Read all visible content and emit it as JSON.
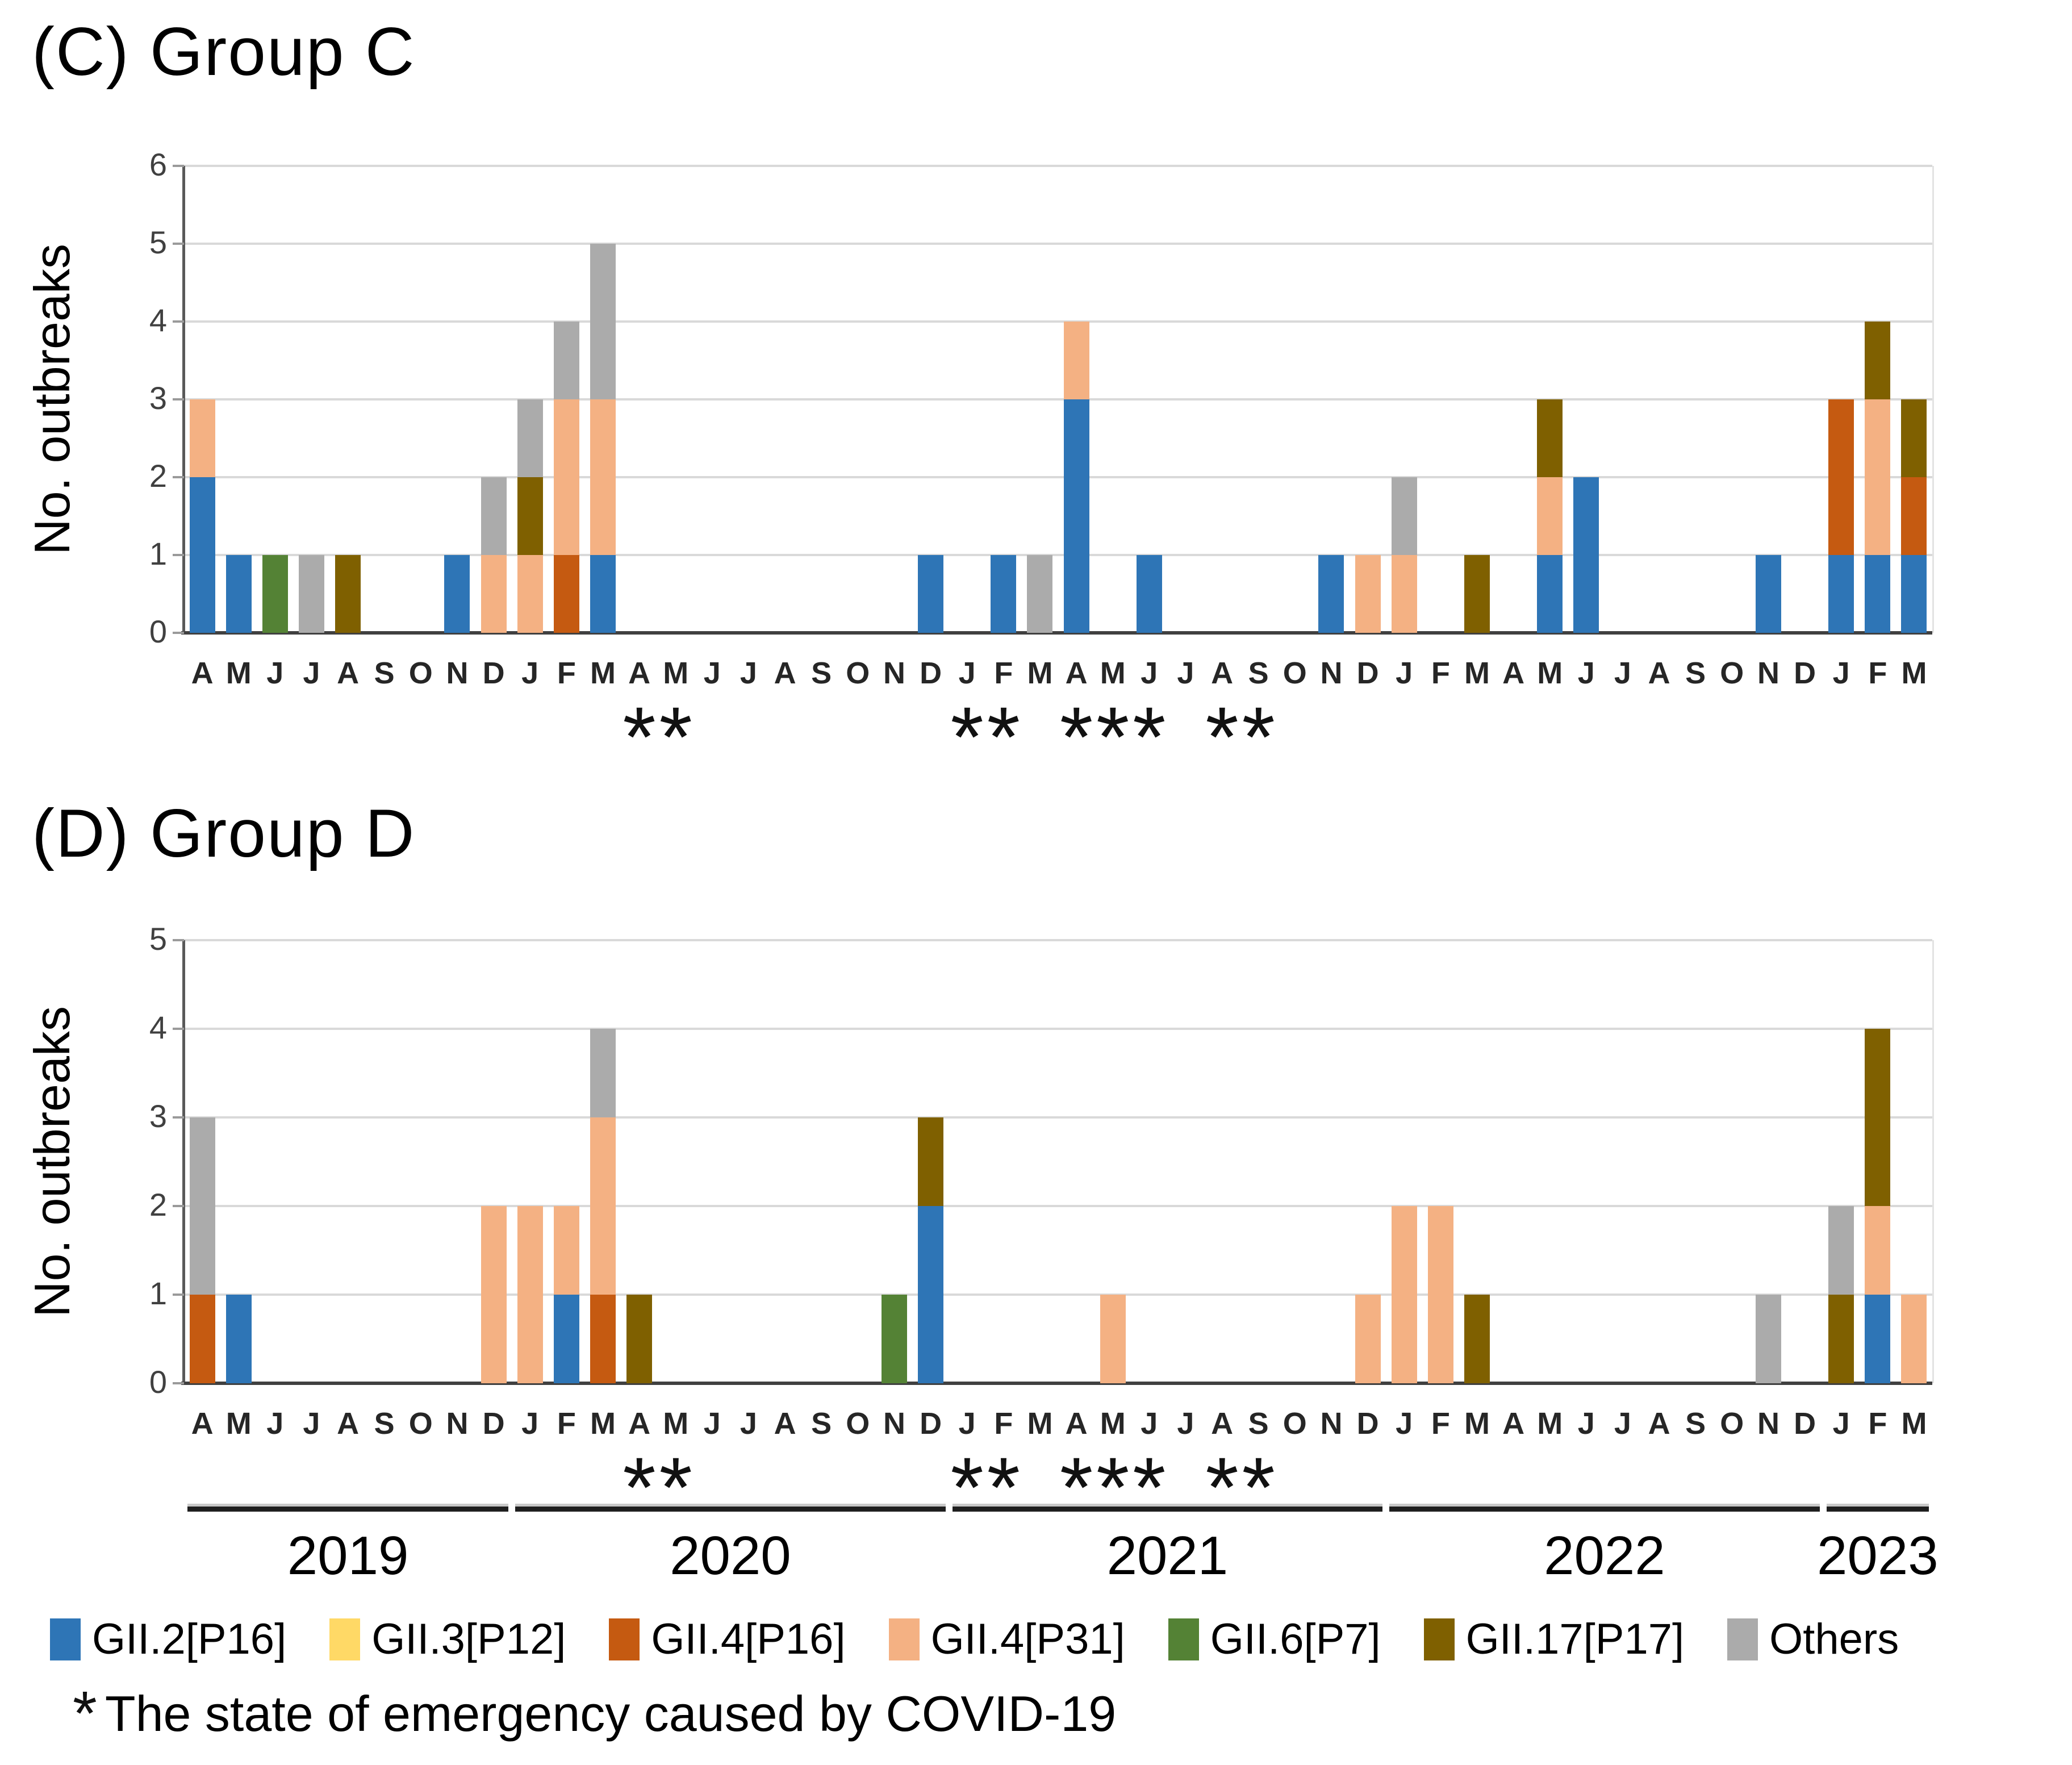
{
  "chart_data": {
    "type": "bar",
    "stacked": true,
    "grid": true,
    "legend_position": "bottom",
    "categories_months": [
      "A",
      "M",
      "J",
      "J",
      "A",
      "S",
      "O",
      "N",
      "D",
      "J",
      "F",
      "M",
      "A",
      "M",
      "J",
      "J",
      "A",
      "S",
      "O",
      "N",
      "D",
      "J",
      "F",
      "M",
      "A",
      "M",
      "J",
      "J",
      "A",
      "S",
      "O",
      "N",
      "D",
      "J",
      "F",
      "M",
      "A",
      "M",
      "J",
      "J",
      "A",
      "S",
      "O",
      "N",
      "D",
      "J",
      "F",
      "M"
    ],
    "years": [
      {
        "label": "2019",
        "start": 0,
        "span": 9
      },
      {
        "label": "2020",
        "start": 9,
        "span": 12
      },
      {
        "label": "2021",
        "start": 21,
        "span": 12
      },
      {
        "label": "2022",
        "start": 33,
        "span": 12
      },
      {
        "label": "2023",
        "start": 45,
        "span": 3
      }
    ],
    "series": [
      {
        "label": "GII.2[P16]",
        "color": "#2E75B6"
      },
      {
        "label": "GII.3[P12]",
        "color": "#FFD966"
      },
      {
        "label": "GII.4[P16]",
        "color": "#C55A11"
      },
      {
        "label": "GII.4[P31]",
        "color": "#F4B183"
      },
      {
        "label": "GII.6[P7]",
        "color": "#548235"
      },
      {
        "label": "GII.17[P17]",
        "color": "#7F6000"
      },
      {
        "label": "Others",
        "color": "#ABABAB"
      }
    ],
    "asterisk_symbol": "*",
    "asterisk_month_indices": [
      12,
      13,
      21,
      22,
      24,
      25,
      26,
      28,
      29
    ],
    "charts": [
      {
        "title": "(C) Group C",
        "ylabel": "No. outbreaks",
        "ylim": [
          0,
          6
        ],
        "yticks": [
          0,
          1,
          2,
          3,
          4,
          5,
          6
        ],
        "stacks": [
          [
            2,
            0,
            0,
            1,
            0,
            0,
            0
          ],
          [
            1,
            0,
            0,
            0,
            0,
            0,
            0
          ],
          [
            0,
            0,
            0,
            0,
            1,
            0,
            0
          ],
          [
            0,
            0,
            0,
            0,
            0,
            0,
            1
          ],
          [
            0,
            0,
            0,
            0,
            0,
            1,
            0
          ],
          [
            0,
            0,
            0,
            0,
            0,
            0,
            0
          ],
          [
            0,
            0,
            0,
            0,
            0,
            0,
            0
          ],
          [
            1,
            0,
            0,
            0,
            0,
            0,
            0
          ],
          [
            0,
            0,
            0,
            1,
            0,
            0,
            1
          ],
          [
            0,
            0,
            0,
            1,
            0,
            1,
            1
          ],
          [
            0,
            0,
            1,
            2,
            0,
            0,
            1
          ],
          [
            1,
            0,
            0,
            2,
            0,
            0,
            2
          ],
          [
            0,
            0,
            0,
            0,
            0,
            0,
            0
          ],
          [
            0,
            0,
            0,
            0,
            0,
            0,
            0
          ],
          [
            0,
            0,
            0,
            0,
            0,
            0,
            0
          ],
          [
            0,
            0,
            0,
            0,
            0,
            0,
            0
          ],
          [
            0,
            0,
            0,
            0,
            0,
            0,
            0
          ],
          [
            0,
            0,
            0,
            0,
            0,
            0,
            0
          ],
          [
            0,
            0,
            0,
            0,
            0,
            0,
            0
          ],
          [
            0,
            0,
            0,
            0,
            0,
            0,
            0
          ],
          [
            1,
            0,
            0,
            0,
            0,
            0,
            0
          ],
          [
            0,
            0,
            0,
            0,
            0,
            0,
            0
          ],
          [
            1,
            0,
            0,
            0,
            0,
            0,
            0
          ],
          [
            0,
            0,
            0,
            0,
            0,
            0,
            1
          ],
          [
            3,
            0,
            0,
            1,
            0,
            0,
            0
          ],
          [
            0,
            0,
            0,
            0,
            0,
            0,
            0
          ],
          [
            1,
            0,
            0,
            0,
            0,
            0,
            0
          ],
          [
            0,
            0,
            0,
            0,
            0,
            0,
            0
          ],
          [
            0,
            0,
            0,
            0,
            0,
            0,
            0
          ],
          [
            0,
            0,
            0,
            0,
            0,
            0,
            0
          ],
          [
            0,
            0,
            0,
            0,
            0,
            0,
            0
          ],
          [
            1,
            0,
            0,
            0,
            0,
            0,
            0
          ],
          [
            0,
            0,
            0,
            1,
            0,
            0,
            0
          ],
          [
            0,
            0,
            0,
            1,
            0,
            0,
            1
          ],
          [
            0,
            0,
            0,
            0,
            0,
            0,
            0
          ],
          [
            0,
            0,
            0,
            0,
            0,
            1,
            0
          ],
          [
            0,
            0,
            0,
            0,
            0,
            0,
            0
          ],
          [
            1,
            0,
            0,
            1,
            0,
            1,
            0
          ],
          [
            2,
            0,
            0,
            0,
            0,
            0,
            0
          ],
          [
            0,
            0,
            0,
            0,
            0,
            0,
            0
          ],
          [
            0,
            0,
            0,
            0,
            0,
            0,
            0
          ],
          [
            0,
            0,
            0,
            0,
            0,
            0,
            0
          ],
          [
            0,
            0,
            0,
            0,
            0,
            0,
            0
          ],
          [
            1,
            0,
            0,
            0,
            0,
            0,
            0
          ],
          [
            0,
            0,
            0,
            0,
            0,
            0,
            0
          ],
          [
            1,
            0,
            2,
            0,
            0,
            0,
            0
          ],
          [
            1,
            0,
            0,
            2,
            0,
            1,
            0
          ],
          [
            1,
            0,
            1,
            0,
            0,
            1,
            0
          ]
        ]
      },
      {
        "title": "(D) Group D",
        "ylabel": "No. outbreaks",
        "ylim": [
          0,
          5
        ],
        "yticks": [
          0,
          1,
          2,
          3,
          4,
          5
        ],
        "stacks": [
          [
            0,
            0,
            1,
            0,
            0,
            0,
            2
          ],
          [
            1,
            0,
            0,
            0,
            0,
            0,
            0
          ],
          [
            0,
            0,
            0,
            0,
            0,
            0,
            0
          ],
          [
            0,
            0,
            0,
            0,
            0,
            0,
            0
          ],
          [
            0,
            0,
            0,
            0,
            0,
            0,
            0
          ],
          [
            0,
            0,
            0,
            0,
            0,
            0,
            0
          ],
          [
            0,
            0,
            0,
            0,
            0,
            0,
            0
          ],
          [
            0,
            0,
            0,
            0,
            0,
            0,
            0
          ],
          [
            0,
            0,
            0,
            2,
            0,
            0,
            0
          ],
          [
            0,
            0,
            0,
            2,
            0,
            0,
            0
          ],
          [
            1,
            0,
            0,
            1,
            0,
            0,
            0
          ],
          [
            0,
            0,
            1,
            2,
            0,
            0,
            1
          ],
          [
            0,
            0,
            0,
            0,
            0,
            1,
            0
          ],
          [
            0,
            0,
            0,
            0,
            0,
            0,
            0
          ],
          [
            0,
            0,
            0,
            0,
            0,
            0,
            0
          ],
          [
            0,
            0,
            0,
            0,
            0,
            0,
            0
          ],
          [
            0,
            0,
            0,
            0,
            0,
            0,
            0
          ],
          [
            0,
            0,
            0,
            0,
            0,
            0,
            0
          ],
          [
            0,
            0,
            0,
            0,
            0,
            0,
            0
          ],
          [
            0,
            0,
            0,
            0,
            1,
            0,
            0
          ],
          [
            2,
            0,
            0,
            0,
            0,
            1,
            0
          ],
          [
            0,
            0,
            0,
            0,
            0,
            0,
            0
          ],
          [
            0,
            0,
            0,
            0,
            0,
            0,
            0
          ],
          [
            0,
            0,
            0,
            0,
            0,
            0,
            0
          ],
          [
            0,
            0,
            0,
            0,
            0,
            0,
            0
          ],
          [
            0,
            0,
            0,
            1,
            0,
            0,
            0
          ],
          [
            0,
            0,
            0,
            0,
            0,
            0,
            0
          ],
          [
            0,
            0,
            0,
            0,
            0,
            0,
            0
          ],
          [
            0,
            0,
            0,
            0,
            0,
            0,
            0
          ],
          [
            0,
            0,
            0,
            0,
            0,
            0,
            0
          ],
          [
            0,
            0,
            0,
            0,
            0,
            0,
            0
          ],
          [
            0,
            0,
            0,
            0,
            0,
            0,
            0
          ],
          [
            0,
            0,
            0,
            1,
            0,
            0,
            0
          ],
          [
            0,
            0,
            0,
            2,
            0,
            0,
            0
          ],
          [
            0,
            0,
            0,
            2,
            0,
            0,
            0
          ],
          [
            0,
            0,
            0,
            0,
            0,
            1,
            0
          ],
          [
            0,
            0,
            0,
            0,
            0,
            0,
            0
          ],
          [
            0,
            0,
            0,
            0,
            0,
            0,
            0
          ],
          [
            0,
            0,
            0,
            0,
            0,
            0,
            0
          ],
          [
            0,
            0,
            0,
            0,
            0,
            0,
            0
          ],
          [
            0,
            0,
            0,
            0,
            0,
            0,
            0
          ],
          [
            0,
            0,
            0,
            0,
            0,
            0,
            0
          ],
          [
            0,
            0,
            0,
            0,
            0,
            0,
            0
          ],
          [
            0,
            0,
            0,
            0,
            0,
            0,
            1
          ],
          [
            0,
            0,
            0,
            0,
            0,
            0,
            0
          ],
          [
            0,
            0,
            0,
            0,
            0,
            1,
            1
          ],
          [
            1,
            0,
            0,
            1,
            0,
            2,
            0
          ],
          [
            0,
            0,
            0,
            1,
            0,
            0,
            0
          ]
        ]
      }
    ]
  },
  "footnote": {
    "symbol": "*",
    "text": "The state of emergency caused by COVID-19"
  }
}
